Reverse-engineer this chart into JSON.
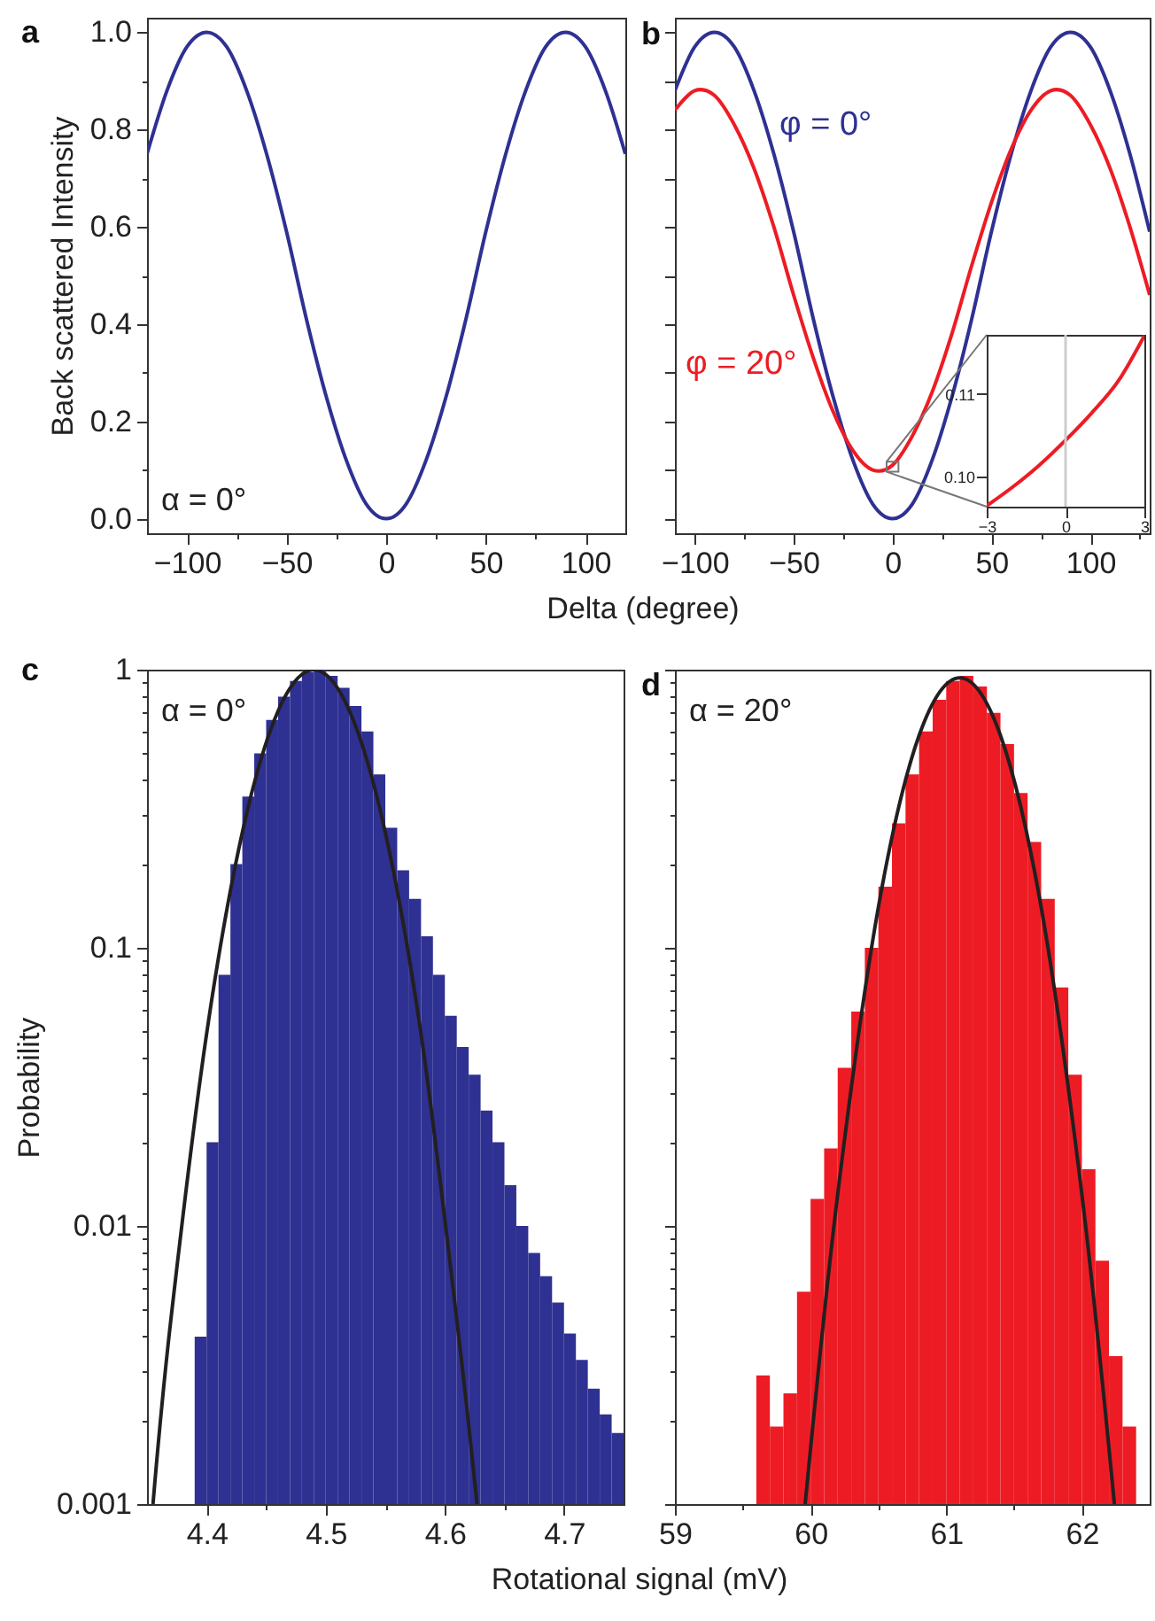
{
  "chart_data": [
    {
      "type": "line",
      "title": "a",
      "ylabel": "Back scattered Intensity",
      "xlabel": "Delta (degree)",
      "annotations": [
        "α = 0°"
      ],
      "x": [
        -120,
        -110,
        -100,
        -90,
        -80,
        -70,
        -60,
        -50,
        -40,
        -30,
        -20,
        -10,
        0,
        10,
        20,
        30,
        40,
        50,
        60,
        70,
        80,
        90,
        100,
        110,
        120
      ],
      "values": [
        0.75,
        0.88,
        0.97,
        1,
        0.97,
        0.88,
        0.75,
        0.59,
        0.41,
        0.25,
        0.12,
        0.03,
        0,
        0.03,
        0.12,
        0.25,
        0.41,
        0.59,
        0.75,
        0.88,
        0.97,
        1,
        0.97,
        0.88,
        0.75
      ],
      "color": "#2e3192",
      "xlim": [
        -120,
        120
      ],
      "ylim": [
        -0.03,
        1.03
      ],
      "xticks": [
        -100,
        {
          "value": -75,
          "label": null
        },
        -50,
        {
          "value": -25,
          "label": null
        },
        0,
        {
          "value": 25,
          "label": null
        },
        50,
        {
          "value": 75,
          "label": null
        },
        100
      ],
      "yticks": [
        {
          "value": 0,
          "label": "0.0"
        },
        {
          "value": 0.1,
          "label": null
        },
        0.2,
        {
          "value": 0.3,
          "label": null
        },
        0.4,
        {
          "value": 0.5,
          "label": null
        },
        0.6,
        {
          "value": 0.7,
          "label": null
        },
        0.8,
        {
          "value": 0.9,
          "label": null
        },
        {
          "value": 1,
          "label": "1.0"
        }
      ]
    },
    {
      "type": "line",
      "title": "b",
      "x": [
        -110,
        -100,
        -90,
        -80,
        -70,
        -60,
        -50,
        -40,
        -30,
        -20,
        -10,
        0,
        10,
        20,
        30,
        40,
        50,
        60,
        70,
        80,
        90,
        100,
        110,
        120,
        130
      ],
      "series": [
        {
          "name": "φ = 0°",
          "color": "#2e3192",
          "values": [
            0.88,
            0.97,
            1,
            0.97,
            0.88,
            0.75,
            0.59,
            0.41,
            0.25,
            0.12,
            0.03,
            0,
            0.03,
            0.12,
            0.25,
            0.41,
            0.59,
            0.75,
            0.88,
            0.97,
            1,
            0.97,
            0.88,
            0.75,
            0.59
          ]
        },
        {
          "name": "φ = 20°",
          "color": "#ed1c24",
          "values": [
            0.84,
            0.88,
            0.87,
            0.81,
            0.72,
            0.6,
            0.46,
            0.33,
            0.22,
            0.14,
            0.1,
            0.11,
            0.17,
            0.26,
            0.38,
            0.52,
            0.65,
            0.76,
            0.84,
            0.88,
            0.87,
            0.81,
            0.72,
            0.6,
            0.46
          ]
        }
      ],
      "xlim": [
        -110,
        130
      ],
      "ylim": [
        -0.03,
        1.03
      ],
      "xticks": [
        -100,
        {
          "value": -75,
          "label": null
        },
        -50,
        {
          "value": -25,
          "label": null
        },
        0,
        {
          "value": 25,
          "label": null
        },
        50,
        {
          "value": 75,
          "label": null
        },
        100,
        {
          "value": 125,
          "label": null
        }
      ],
      "yticks": [
        0,
        0.1,
        0.2,
        0.3,
        0.4,
        0.5,
        0.6,
        0.7,
        0.8,
        0.9,
        1
      ],
      "tick_labels": "x"
    },
    {
      "type": "line",
      "x": [
        -3,
        -2,
        -1,
        0,
        1,
        2,
        3
      ],
      "values": [
        0.0965,
        0.0988,
        0.1014,
        0.1044,
        0.1077,
        0.1115,
        0.117
      ],
      "color": "#ed1c24",
      "xlim": [
        -3,
        3
      ],
      "ylim": [
        0.0964,
        0.1171
      ],
      "xticks": [
        -3,
        0,
        3
      ],
      "yticks": [
        {
          "value": 0.1,
          "label": "0.10"
        },
        {
          "value": 0.11,
          "label": "0.11"
        }
      ],
      "ref_lines": [
        {
          "axis": "x",
          "value": 0,
          "color": "#cccccc"
        }
      ]
    },
    {
      "type": "histogram",
      "title": "c",
      "ylabel": "Probability",
      "xlabel": "Rotational signal (mV)",
      "annotations": [
        "α = 0°"
      ],
      "bins": [
        4.39,
        4.4,
        4.41,
        4.42,
        4.43,
        4.44,
        4.45,
        4.46,
        4.47,
        4.48,
        4.49,
        4.5,
        4.51,
        4.52,
        4.53,
        4.54,
        4.55,
        4.56,
        4.57,
        4.58,
        4.59,
        4.6,
        4.61,
        4.62,
        4.63,
        4.64,
        4.65,
        4.66,
        4.67,
        4.68,
        4.69,
        4.7,
        4.71,
        4.72,
        4.73,
        4.74,
        4.75
      ],
      "values": [
        0.004,
        0.02,
        0.08,
        0.2,
        0.35,
        0.5,
        0.66,
        0.8,
        0.91,
        0.98,
        1,
        0.95,
        0.86,
        0.74,
        0.6,
        0.42,
        0.27,
        0.19,
        0.15,
        0.11,
        0.08,
        0.057,
        0.044,
        0.035,
        0.026,
        0.02,
        0.014,
        0.01,
        0.008,
        0.0066,
        0.0053,
        0.0041,
        0.0033,
        0.0026,
        0.0021,
        0.0018
      ],
      "color": "#2e3192",
      "series": [
        {
          "type": "line",
          "color": "#231f20",
          "x": [
            4.355,
            4.37,
            4.4,
            4.43,
            4.46,
            4.49,
            4.52,
            4.55,
            4.58,
            4.61,
            4.627
          ],
          "values": [
            0.001,
            0.0046,
            0.049,
            0.26,
            0.71,
            1,
            0.71,
            0.26,
            0.049,
            0.0046,
            0.001
          ]
        }
      ],
      "xlim": [
        4.35,
        4.75
      ],
      "ylim": [
        0.001,
        1
      ],
      "log": true,
      "xticks": [
        4.4,
        {
          "value": 4.45,
          "label": null
        },
        4.5,
        {
          "value": 4.55,
          "label": null
        },
        4.6,
        {
          "value": 4.65,
          "label": null
        },
        4.7
      ],
      "yticks": [
        0.001,
        {
          "value": 0.002,
          "label": null
        },
        {
          "value": 0.003,
          "label": null
        },
        {
          "value": 0.004,
          "label": null
        },
        {
          "value": 0.005,
          "label": null
        },
        {
          "value": 0.006,
          "label": null
        },
        {
          "value": 0.007,
          "label": null
        },
        {
          "value": 0.008,
          "label": null
        },
        {
          "value": 0.009,
          "label": null
        },
        0.01,
        {
          "value": 0.02,
          "label": null
        },
        {
          "value": 0.03,
          "label": null
        },
        {
          "value": 0.04,
          "label": null
        },
        {
          "value": 0.05,
          "label": null
        },
        {
          "value": 0.06,
          "label": null
        },
        {
          "value": 0.07,
          "label": null
        },
        {
          "value": 0.08,
          "label": null
        },
        {
          "value": 0.09,
          "label": null
        },
        0.1,
        {
          "value": 0.2,
          "label": null
        },
        {
          "value": 0.3,
          "label": null
        },
        {
          "value": 0.4,
          "label": null
        },
        {
          "value": 0.5,
          "label": null
        },
        {
          "value": 0.6,
          "label": null
        },
        {
          "value": 0.7,
          "label": null
        },
        {
          "value": 0.8,
          "label": null
        },
        {
          "value": 0.9,
          "label": null
        },
        1
      ]
    },
    {
      "type": "histogram",
      "title": "d",
      "annotations": [
        "α = 20°"
      ],
      "bins": [
        59.6,
        59.7,
        59.8,
        59.9,
        60,
        60.1,
        60.2,
        60.3,
        60.4,
        60.5,
        60.6,
        60.7,
        60.8,
        60.9,
        61,
        61.1,
        61.2,
        61.3,
        61.4,
        61.5,
        61.6,
        61.7,
        61.8,
        61.9,
        62,
        62.1,
        62.2,
        62.3,
        62.4
      ],
      "values": [
        0.0029,
        0.0019,
        0.0025,
        0.0058,
        0.0125,
        0.019,
        0.037,
        0.059,
        0.1,
        0.166,
        0.28,
        0.42,
        0.6,
        0.78,
        0.91,
        0.95,
        0.87,
        0.7,
        0.54,
        0.36,
        0.24,
        0.15,
        0.072,
        0.035,
        0.016,
        0.0075,
        0.0034,
        0.0019
      ],
      "color": "#ed1c24",
      "series": [
        {
          "type": "line",
          "color": "#231f20",
          "x": [
            59.96,
            60.2,
            60.5,
            60.8,
            61.1,
            61.4,
            61.7,
            62,
            62.24
          ],
          "values": [
            0.001,
            0.013,
            0.14,
            0.58,
            0.935,
            0.58,
            0.14,
            0.013,
            0.001
          ]
        }
      ],
      "xlim": [
        59,
        62.5
      ],
      "ylim": [
        0.001,
        1
      ],
      "log": true,
      "xticks": [
        59,
        {
          "value": 59.5,
          "label": null
        },
        60,
        {
          "value": 60.5,
          "label": null
        },
        61,
        {
          "value": 61.5,
          "label": null
        },
        62
      ],
      "yticks": [
        0.001,
        {
          "value": 0.002,
          "label": null
        },
        {
          "value": 0.003,
          "label": null
        },
        {
          "value": 0.004,
          "label": null
        },
        {
          "value": 0.005,
          "label": null
        },
        {
          "value": 0.006,
          "label": null
        },
        {
          "value": 0.007,
          "label": null
        },
        {
          "value": 0.008,
          "label": null
        },
        {
          "value": 0.009,
          "label": null
        },
        0.01,
        {
          "value": 0.02,
          "label": null
        },
        {
          "value": 0.03,
          "label": null
        },
        {
          "value": 0.04,
          "label": null
        },
        {
          "value": 0.05,
          "label": null
        },
        {
          "value": 0.06,
          "label": null
        },
        {
          "value": 0.07,
          "label": null
        },
        {
          "value": 0.08,
          "label": null
        },
        {
          "value": 0.09,
          "label": null
        },
        0.1,
        {
          "value": 0.2,
          "label": null
        },
        {
          "value": 0.3,
          "label": null
        },
        {
          "value": 0.4,
          "label": null
        },
        {
          "value": 0.5,
          "label": null
        },
        {
          "value": 0.6,
          "label": null
        },
        {
          "value": 0.7,
          "label": null
        },
        {
          "value": 0.8,
          "label": null
        },
        {
          "value": 0.9,
          "label": null
        },
        1
      ],
      "tick_labels": "x"
    }
  ]
}
